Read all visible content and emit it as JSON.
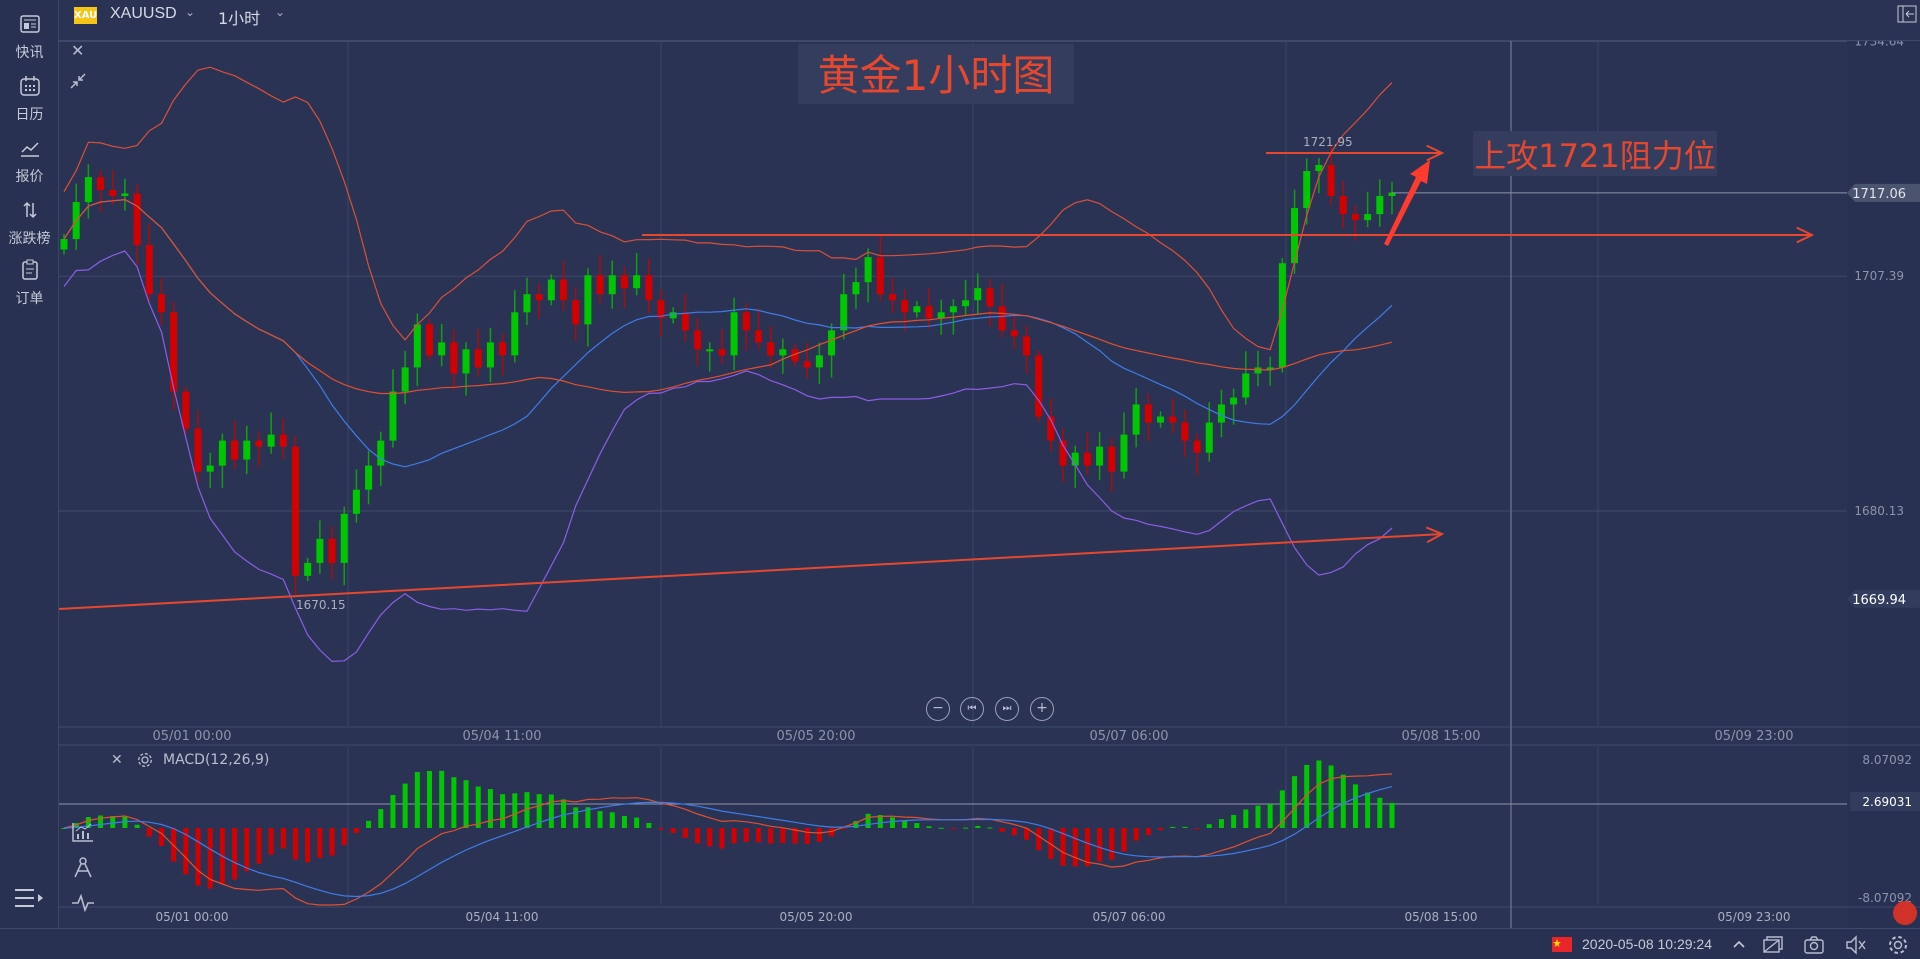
{
  "sidebar": {
    "items": [
      {
        "label": "快讯",
        "icon": "news-icon"
      },
      {
        "label": "日历",
        "icon": "calendar-icon"
      },
      {
        "label": "报价",
        "icon": "quote-chart-icon"
      },
      {
        "label": "涨跌榜",
        "icon": "up-down-arrows-icon"
      },
      {
        "label": "订单",
        "icon": "order-icon"
      }
    ]
  },
  "topbar": {
    "badge": "XAU",
    "symbol": "XAUUSD",
    "interval": "1小时"
  },
  "annotations": {
    "title": "黄金1小时图",
    "resistance_note": "上攻1721阻力位",
    "high_label": "1721.95",
    "low_label": "1670.15"
  },
  "macd": {
    "label": "MACD(12,26,9)",
    "axis": [
      "8.07092",
      "2.69031",
      "-8.07092"
    ],
    "fast": 12,
    "slow": 26,
    "signal": 9,
    "ylim": [
      -8.07092,
      8.07092
    ],
    "current": 2.69031
  },
  "status": {
    "datetime": "2020-05-08 10:29:24"
  },
  "colors": {
    "background": "#2a3353",
    "up": "#00c800",
    "down": "#d40000",
    "annotation": "#e5482f",
    "bb_upper": "#d9503a",
    "bb_lower": "#8c5de6",
    "ma_fast": "#3f7ce8",
    "ma_slow": "#e0502f"
  },
  "chart_data": {
    "type": "candlestick",
    "title": "黄金1小时图",
    "symbol": "XAUUSD",
    "interval": "1H",
    "ylim": [
      1660,
      1740
    ],
    "y_ticks": [
      "1734.64",
      "1707.39",
      "1680.13"
    ],
    "current_price": "1717.06",
    "low_marker": "1669.94",
    "x_ticks": [
      "05/01 00:00",
      "05/04 11:00",
      "05/05 20:00",
      "05/07 06:00",
      "05/08 15:00",
      "05/09 23:00"
    ],
    "first_open": 1710.5,
    "closes": [
      1711.7,
      1716.0,
      1718.9,
      1717.4,
      1716.7,
      1717.0,
      1711.0,
      1705.3,
      1703.2,
      1694.0,
      1689.7,
      1684.7,
      1685.4,
      1688.3,
      1686.1,
      1688.3,
      1687.6,
      1689.0,
      1687.6,
      1672.6,
      1674.1,
      1676.9,
      1674.1,
      1679.8,
      1682.6,
      1685.4,
      1688.3,
      1694.0,
      1696.8,
      1701.8,
      1698.2,
      1699.7,
      1696.1,
      1698.9,
      1696.8,
      1699.7,
      1698.2,
      1703.2,
      1705.3,
      1704.6,
      1707.0,
      1704.6,
      1701.8,
      1707.5,
      1705.3,
      1707.5,
      1706.0,
      1707.5,
      1704.6,
      1702.5,
      1703.2,
      1701.1,
      1698.9,
      1698.9,
      1698.2,
      1703.2,
      1701.1,
      1699.7,
      1698.2,
      1698.9,
      1697.5,
      1696.8,
      1698.2,
      1701.1,
      1705.3,
      1706.7,
      1709.6,
      1705.3,
      1704.6,
      1703.2,
      1703.9,
      1702.5,
      1703.2,
      1703.9,
      1704.6,
      1706.0,
      1703.9,
      1701.1,
      1700.4,
      1698.2,
      1691.1,
      1688.3,
      1685.4,
      1686.9,
      1685.4,
      1687.6,
      1684.7,
      1689.0,
      1692.5,
      1690.4,
      1691.1,
      1690.4,
      1688.3,
      1686.9,
      1690.4,
      1692.5,
      1693.3,
      1696.1,
      1696.8,
      1696.8,
      1708.9,
      1715.3,
      1719.6,
      1720.3,
      1716.7,
      1714.6,
      1713.9,
      1714.6,
      1716.7,
      1717.1
    ],
    "indicators": [
      "Bollinger(20,2)",
      "MA"
    ],
    "resistance_levels": [
      1721.95,
      1710.0
    ],
    "support_trendline": [
      1668.5,
      1677.2
    ]
  }
}
